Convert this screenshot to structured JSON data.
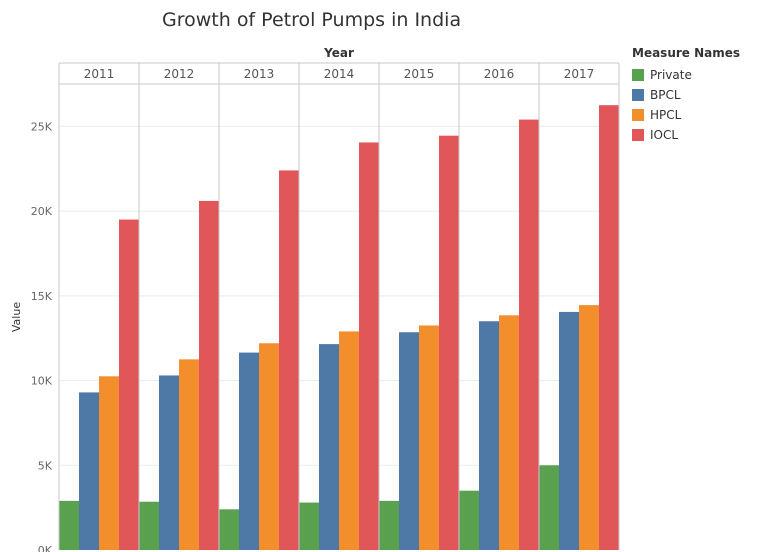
{
  "chart_data": {
    "type": "bar",
    "title": "Growth of Petrol Pumps in India",
    "header_label": "Year",
    "ylabel": "Value",
    "categories": [
      "2011",
      "2012",
      "2013",
      "2014",
      "2015",
      "2016",
      "2017"
    ],
    "series": [
      {
        "name": "Private",
        "color": "#59a14f",
        "values": [
          2900,
          2850,
          2400,
          2800,
          2900,
          3500,
          5000
        ]
      },
      {
        "name": "BPCL",
        "color": "#4e79a7",
        "values": [
          9300,
          10300,
          11650,
          12150,
          12850,
          13500,
          14050
        ]
      },
      {
        "name": "HPCL",
        "color": "#f28e2b",
        "values": [
          10250,
          11250,
          12200,
          12900,
          13250,
          13850,
          14450
        ]
      },
      {
        "name": "IOCL",
        "color": "#e15759",
        "values": [
          19500,
          20600,
          22400,
          24050,
          24450,
          25400,
          26250
        ]
      }
    ],
    "ylim": [
      0,
      27500
    ],
    "yticks": [
      0,
      5000,
      10000,
      15000,
      20000,
      25000
    ],
    "ytick_labels": [
      "0K",
      "5K",
      "10K",
      "15K",
      "20K",
      "25K"
    ],
    "legend_title": "Measure Names",
    "legend_position": "right",
    "grid": true
  }
}
